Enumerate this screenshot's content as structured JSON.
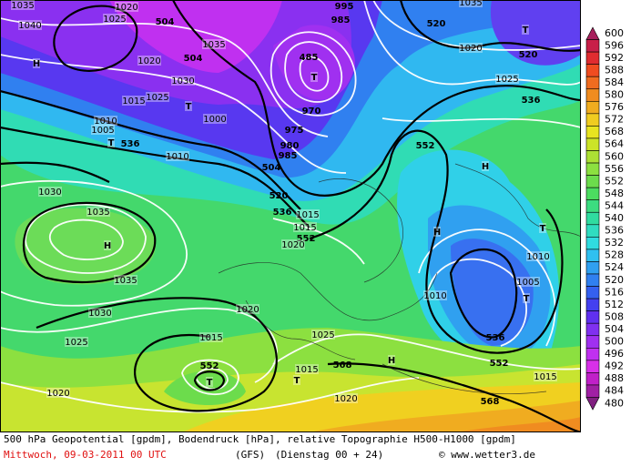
{
  "legend": {
    "levels": [
      {
        "value": 600,
        "color": "#a8205c"
      },
      {
        "value": 596,
        "color": "#c82048"
      },
      {
        "value": 592,
        "color": "#e02c30"
      },
      {
        "value": 588,
        "color": "#f04c20"
      },
      {
        "value": 584,
        "color": "#f06c20"
      },
      {
        "value": 580,
        "color": "#f08c20"
      },
      {
        "value": 576,
        "color": "#f0ac20"
      },
      {
        "value": 572,
        "color": "#f0cc20"
      },
      {
        "value": 568,
        "color": "#e8e420"
      },
      {
        "value": 564,
        "color": "#cce428"
      },
      {
        "value": 560,
        "color": "#ace034"
      },
      {
        "value": 556,
        "color": "#8ce040"
      },
      {
        "value": 552,
        "color": "#6cdc4c"
      },
      {
        "value": 548,
        "color": "#4cdc60"
      },
      {
        "value": 544,
        "color": "#3cdc80"
      },
      {
        "value": 540,
        "color": "#30dca0"
      },
      {
        "value": 536,
        "color": "#30dcc0"
      },
      {
        "value": 532,
        "color": "#30dce0"
      },
      {
        "value": 528,
        "color": "#30c0f0"
      },
      {
        "value": 524,
        "color": "#30a0f0"
      },
      {
        "value": 520,
        "color": "#3080f0"
      },
      {
        "value": 516,
        "color": "#3460f0"
      },
      {
        "value": 512,
        "color": "#4440f0"
      },
      {
        "value": 508,
        "color": "#6030f0"
      },
      {
        "value": 504,
        "color": "#8030f0"
      },
      {
        "value": 500,
        "color": "#a030f0"
      },
      {
        "value": 496,
        "color": "#c030f0"
      },
      {
        "value": 492,
        "color": "#d830e8"
      },
      {
        "value": 488,
        "color": "#c020c8"
      },
      {
        "value": 484,
        "color": "#a020a4"
      },
      {
        "value": 480,
        "color": "#802080"
      }
    ]
  },
  "map_labels": [
    "H",
    "H",
    "H",
    "H",
    "H",
    "T",
    "T",
    "T",
    "T",
    "T",
    "T",
    "T",
    "T",
    "504",
    "504",
    "520",
    "520",
    "536",
    "536",
    "552",
    "504",
    "520",
    "536",
    "552",
    "536",
    "552",
    "568",
    "568",
    "552",
    "485",
    "1035",
    "1040",
    "1025",
    "1020",
    "1020",
    "1035",
    "1030",
    "1025",
    "1015",
    "1010",
    "1005",
    "1000",
    "1010",
    "1030",
    "1035",
    "1035",
    "1030",
    "1025",
    "1020",
    "1015",
    "1020",
    "1025",
    "1015",
    "1020",
    "1015",
    "1010",
    "1005",
    "1010",
    "1025",
    "1020",
    "1015",
    "1020",
    "1015",
    "970",
    "975",
    "980",
    "985",
    "995",
    "985",
    "1035"
  ],
  "footer": {
    "line1": "500 hPa Geopotential [gpdm], Bodendruck [hPa], relative Topographie H500-H1000 [gpdm]",
    "date": "Mittwoch, 09-03-2011  00 UTC",
    "model": "(GFS)",
    "run": "(Dienstag 00 + 24)",
    "credit": "© www.wetter3.de"
  }
}
